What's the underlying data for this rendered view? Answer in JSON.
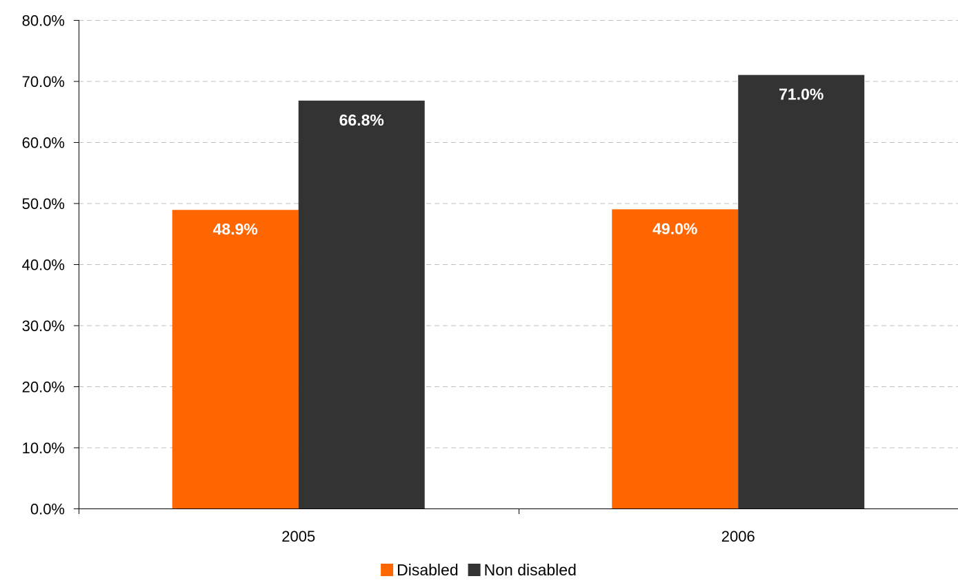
{
  "chart_data": {
    "type": "bar",
    "categories": [
      "2005",
      "2006"
    ],
    "series": [
      {
        "name": "Disabled",
        "values": [
          48.9,
          49.0
        ],
        "labels": [
          "48.9%",
          "49.0%"
        ],
        "color": "#ff6600"
      },
      {
        "name": "Non disabled",
        "values": [
          66.8,
          71.0
        ],
        "labels": [
          "66.8%",
          "71.0%"
        ],
        "color": "#333333"
      }
    ],
    "ylim": [
      0,
      80
    ],
    "yticks": [
      0,
      10,
      20,
      30,
      40,
      50,
      60,
      70,
      80
    ],
    "ytick_labels": [
      "0.0%",
      "10.0%",
      "20.0%",
      "30.0%",
      "40.0%",
      "50.0%",
      "60.0%",
      "70.0%",
      "80.0%"
    ],
    "title": "",
    "xlabel": "",
    "ylabel": "",
    "grid": "horizontal dashed",
    "legend_position": "bottom-center"
  }
}
